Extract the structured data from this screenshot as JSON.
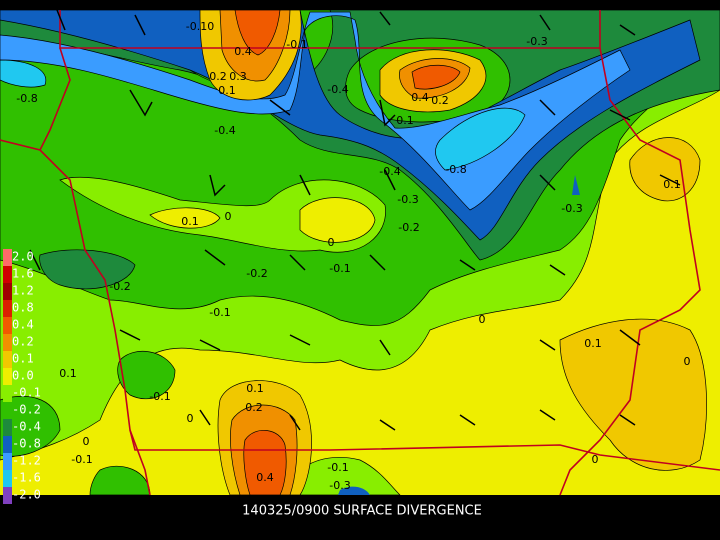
{
  "caption": "140325/0900 SURFACE DIVERGENCE",
  "legend": [
    {
      "label": "2.0",
      "color": "#ff6a6a"
    },
    {
      "label": "1.6",
      "color": "#d00000"
    },
    {
      "label": "1.2",
      "color": "#a00000"
    },
    {
      "label": "0.8",
      "color": "#dc2000"
    },
    {
      "label": "0.4",
      "color": "#f05a00"
    },
    {
      "label": "0.2",
      "color": "#f09000"
    },
    {
      "label": "0.1",
      "color": "#f0c800"
    },
    {
      "label": "0.0",
      "color": "#eeee00"
    },
    {
      "label": "-0.1",
      "color": "#88ee00"
    },
    {
      "label": "-0.2",
      "color": "#30c000"
    },
    {
      "label": "-0.4",
      "color": "#1e8a3c"
    },
    {
      "label": "-0.8",
      "color": "#1060c0"
    },
    {
      "label": "-1.2",
      "color": "#3a9cff"
    },
    {
      "label": "-1.6",
      "color": "#20c8f0"
    },
    {
      "label": "-2.0",
      "color": "#8040c0"
    }
  ],
  "contour_labels": [
    "-0.10",
    "0.4",
    "-0.1",
    "-0.3",
    "0.2",
    "0.3",
    "0.1",
    "-0.8",
    "-0.4",
    "0.4",
    "0.2",
    "0.1",
    "-0.4",
    "-0.4",
    "-0.8",
    "0.1",
    "-0.3",
    "-0.3",
    "0.1",
    "0",
    "-0.2",
    "0",
    "-0.2",
    "-0.1",
    "-0.2",
    "-0.1",
    "0",
    "0.1",
    "0",
    "0.1",
    "0.1",
    "-0.1",
    "0.2",
    "0",
    "0",
    "-0.1",
    "0.4",
    "-0.1",
    "0",
    "-0.3"
  ]
}
